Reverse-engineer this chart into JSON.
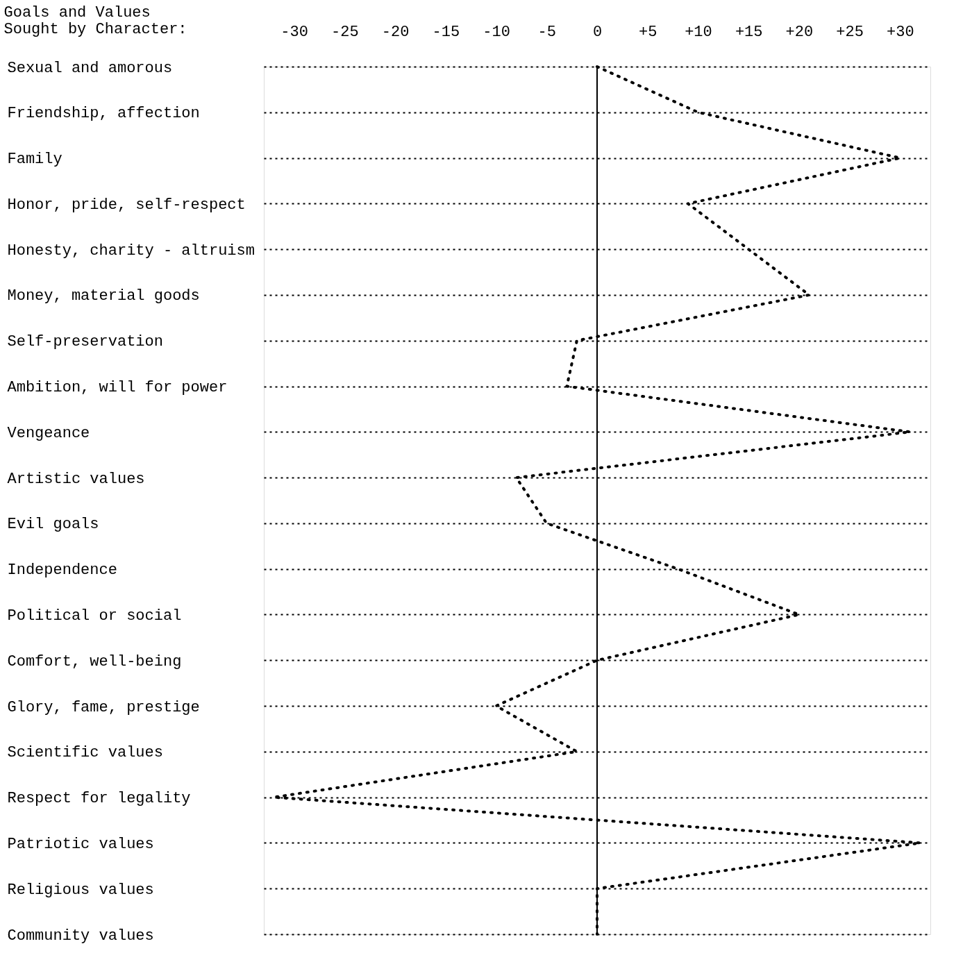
{
  "chart_data": {
    "type": "line",
    "orientation": "horizontal",
    "ylabel": "Goals and Values\nSought by Character:",
    "categories": [
      "Sexual and amorous",
      "Friendship, affection",
      "Family",
      "Honor, pride, self-respect",
      "Honesty, charity - altruism",
      "Money, material goods",
      "Self-preservation",
      "Ambition, will for power",
      "Vengeance",
      "Artistic values",
      "Evil goals",
      "Independence",
      "Political or social",
      "Comfort, well-being",
      "Glory, fame, prestige",
      "Scientific values",
      "Respect for legality",
      "Patriotic values",
      "Religious values",
      "Community values"
    ],
    "series": [
      {
        "color": "#000000",
        "values": [
          0,
          10,
          30,
          9,
          15,
          21,
          -2,
          -3,
          31,
          -8,
          -5,
          8,
          20,
          0,
          -10,
          -2,
          -32,
          32,
          0,
          0
        ]
      }
    ],
    "xlim": [
      -33,
      33
    ],
    "xticks": [
      {
        "value": -30,
        "label": "-30"
      },
      {
        "value": -25,
        "label": "-25"
      },
      {
        "value": -20,
        "label": "-20"
      },
      {
        "value": -15,
        "label": "-15"
      },
      {
        "value": -10,
        "label": "-10"
      },
      {
        "value": -5,
        "label": "-5"
      },
      {
        "value": 0,
        "label": "0"
      },
      {
        "value": 5,
        "label": "+5"
      },
      {
        "value": 10,
        "label": "+10"
      },
      {
        "value": 15,
        "label": "+15"
      },
      {
        "value": 20,
        "label": "+20"
      },
      {
        "value": 25,
        "label": "+25"
      },
      {
        "value": 30,
        "label": "+30"
      }
    ],
    "ref_lines": [
      {
        "axis": "x",
        "value": 0,
        "color": "#000000"
      }
    ],
    "grid": "y",
    "marker": "none",
    "line_style": "dotted"
  }
}
